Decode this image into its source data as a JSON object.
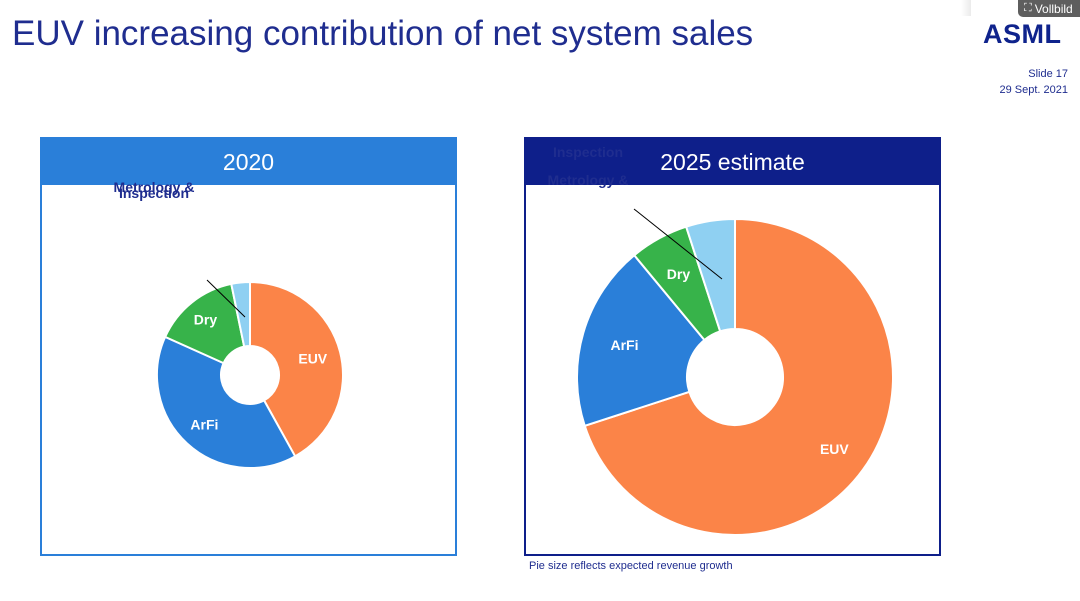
{
  "slide": {
    "title": "EUV increasing contribution of net system sales",
    "logo": "ASML",
    "slide_number": "Slide 17",
    "date": "29 Sept. 2021",
    "footnote": "Pie size reflects expected revenue growth",
    "fullscreen_label": "Vollbild"
  },
  "chart_data": [
    {
      "type": "pie",
      "title": "2020",
      "categories": [
        "EUV",
        "ArFi",
        "Dry",
        "Metrology & Inspection"
      ],
      "values": [
        39,
        37,
        14,
        3
      ],
      "units": "share of net system sales (%)",
      "colors": [
        "#fb8448",
        "#2a7fd9",
        "#37b34a",
        "#8fd0f2"
      ],
      "annotation": "Metrology & Inspection"
    },
    {
      "type": "pie",
      "title": "2025 estimate",
      "categories": [
        "EUV",
        "ArFi",
        "Dry",
        "Metrology & Inspection"
      ],
      "values": [
        70,
        19,
        6,
        5
      ],
      "units": "share of net system sales (%)",
      "colors": [
        "#fb8448",
        "#2a7fd9",
        "#37b34a",
        "#8fd0f2"
      ],
      "annotation": "Metrology & Inspection"
    }
  ]
}
